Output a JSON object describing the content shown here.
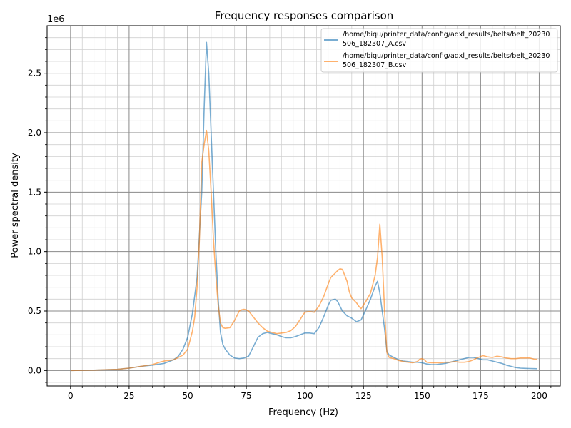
{
  "chart_data": {
    "type": "line",
    "title": "Frequency responses comparison",
    "xlabel": "Frequency (Hz)",
    "ylabel": "Power spectral density",
    "y_scale_label": "1e6",
    "xlim": [
      -10,
      209
    ],
    "ylim": [
      -0.13,
      2.9
    ],
    "x_ticks": [
      0,
      25,
      50,
      75,
      100,
      125,
      150,
      175,
      200
    ],
    "x_tick_labels": [
      "0",
      "25",
      "50",
      "75",
      "100",
      "125",
      "150",
      "175",
      "200"
    ],
    "y_ticks": [
      0.0,
      0.5,
      1.0,
      1.5,
      2.0,
      2.5
    ],
    "y_tick_labels": [
      "0.0",
      "0.5",
      "1.0",
      "1.5",
      "2.0",
      "2.5"
    ],
    "grid": "major and minor",
    "legend_position": "top-right",
    "series": [
      {
        "name": "/home/biqu/printer_data/config/adxl_results/belts/belt_20230506_182307_A.csv",
        "legend_lines": [
          "/home/biqu/printer_data/config/adxl_results/belts/belt_20230",
          "506_182307_A.csv"
        ],
        "color": "#1f77b4",
        "x": [
          0,
          10,
          20,
          25,
          30,
          35,
          40,
          44,
          46,
          48,
          50,
          52,
          54,
          56,
          57,
          58,
          59,
          60,
          61,
          62,
          63,
          64,
          65,
          66,
          68,
          70,
          72,
          74,
          76,
          78,
          80,
          82,
          84,
          86,
          88,
          90,
          92,
          94,
          96,
          98,
          100,
          102,
          104,
          106,
          108,
          110,
          111,
          112,
          113,
          114,
          116,
          118,
          120,
          122,
          124,
          126,
          128,
          130,
          131,
          132,
          134,
          135,
          136,
          138,
          140,
          142,
          144,
          146,
          148,
          150,
          152,
          154,
          156,
          158,
          160,
          162,
          164,
          166,
          168,
          170,
          172,
          174,
          176,
          178,
          180,
          182,
          184,
          186,
          188,
          190,
          192,
          194,
          196,
          198,
          199
        ],
        "y": [
          0.0,
          0.003,
          0.01,
          0.02,
          0.035,
          0.045,
          0.06,
          0.09,
          0.12,
          0.18,
          0.28,
          0.48,
          0.78,
          1.5,
          2.2,
          2.76,
          2.5,
          2.0,
          1.5,
          1.0,
          0.6,
          0.32,
          0.22,
          0.18,
          0.13,
          0.105,
          0.1,
          0.105,
          0.12,
          0.2,
          0.28,
          0.31,
          0.32,
          0.31,
          0.3,
          0.285,
          0.275,
          0.275,
          0.285,
          0.3,
          0.315,
          0.315,
          0.31,
          0.36,
          0.45,
          0.55,
          0.59,
          0.595,
          0.6,
          0.58,
          0.5,
          0.46,
          0.44,
          0.41,
          0.425,
          0.51,
          0.6,
          0.71,
          0.75,
          0.65,
          0.35,
          0.16,
          0.13,
          0.11,
          0.09,
          0.08,
          0.075,
          0.07,
          0.07,
          0.065,
          0.055,
          0.05,
          0.05,
          0.055,
          0.06,
          0.07,
          0.08,
          0.09,
          0.1,
          0.11,
          0.11,
          0.1,
          0.09,
          0.09,
          0.08,
          0.07,
          0.06,
          0.045,
          0.035,
          0.025,
          0.02,
          0.018,
          0.017,
          0.016,
          0.015
        ]
      },
      {
        "name": "/home/biqu/printer_data/config/adxl_results/belts/belt_20230506_182307_B.csv",
        "legend_lines": [
          "/home/biqu/printer_data/config/adxl_results/belts/belt_20230",
          "506_182307_B.csv"
        ],
        "color": "#ff7f0e",
        "x": [
          0,
          10,
          20,
          25,
          30,
          35,
          38,
          40,
          44,
          46,
          48,
          50,
          52,
          53,
          54,
          55,
          56,
          57,
          58,
          59,
          60,
          61,
          62,
          63,
          64,
          65,
          66,
          68,
          70,
          72,
          73,
          74,
          75,
          76,
          78,
          80,
          82,
          84,
          86,
          88,
          90,
          92,
          94,
          96,
          98,
          100,
          102,
          104,
          106,
          108,
          110,
          111,
          112,
          113,
          114,
          115,
          116,
          117,
          118,
          119,
          120,
          122,
          123,
          124,
          126,
          128,
          130,
          131,
          132,
          133,
          134,
          135,
          136,
          138,
          140,
          142,
          144,
          146,
          148,
          149,
          150,
          151,
          152,
          154,
          156,
          158,
          160,
          162,
          164,
          166,
          168,
          170,
          172,
          174,
          176,
          178,
          180,
          182,
          184,
          186,
          188,
          190,
          192,
          194,
          196,
          198,
          199
        ],
        "y": [
          0.0,
          0.003,
          0.01,
          0.02,
          0.035,
          0.05,
          0.07,
          0.08,
          0.09,
          0.11,
          0.13,
          0.18,
          0.33,
          0.45,
          0.7,
          1.1,
          1.75,
          1.9,
          2.02,
          1.85,
          1.5,
          1.1,
          0.8,
          0.55,
          0.4,
          0.36,
          0.355,
          0.36,
          0.42,
          0.5,
          0.51,
          0.515,
          0.51,
          0.5,
          0.45,
          0.4,
          0.36,
          0.33,
          0.32,
          0.31,
          0.315,
          0.32,
          0.335,
          0.37,
          0.43,
          0.49,
          0.495,
          0.49,
          0.54,
          0.62,
          0.73,
          0.78,
          0.8,
          0.82,
          0.84,
          0.855,
          0.85,
          0.8,
          0.75,
          0.66,
          0.61,
          0.57,
          0.54,
          0.52,
          0.58,
          0.65,
          0.8,
          0.95,
          1.23,
          0.95,
          0.5,
          0.15,
          0.11,
          0.1,
          0.085,
          0.075,
          0.07,
          0.065,
          0.075,
          0.095,
          0.1,
          0.09,
          0.07,
          0.065,
          0.065,
          0.065,
          0.07,
          0.07,
          0.075,
          0.07,
          0.07,
          0.075,
          0.09,
          0.11,
          0.125,
          0.115,
          0.11,
          0.12,
          0.115,
          0.105,
          0.1,
          0.1,
          0.105,
          0.105,
          0.105,
          0.095,
          0.095
        ]
      }
    ]
  }
}
